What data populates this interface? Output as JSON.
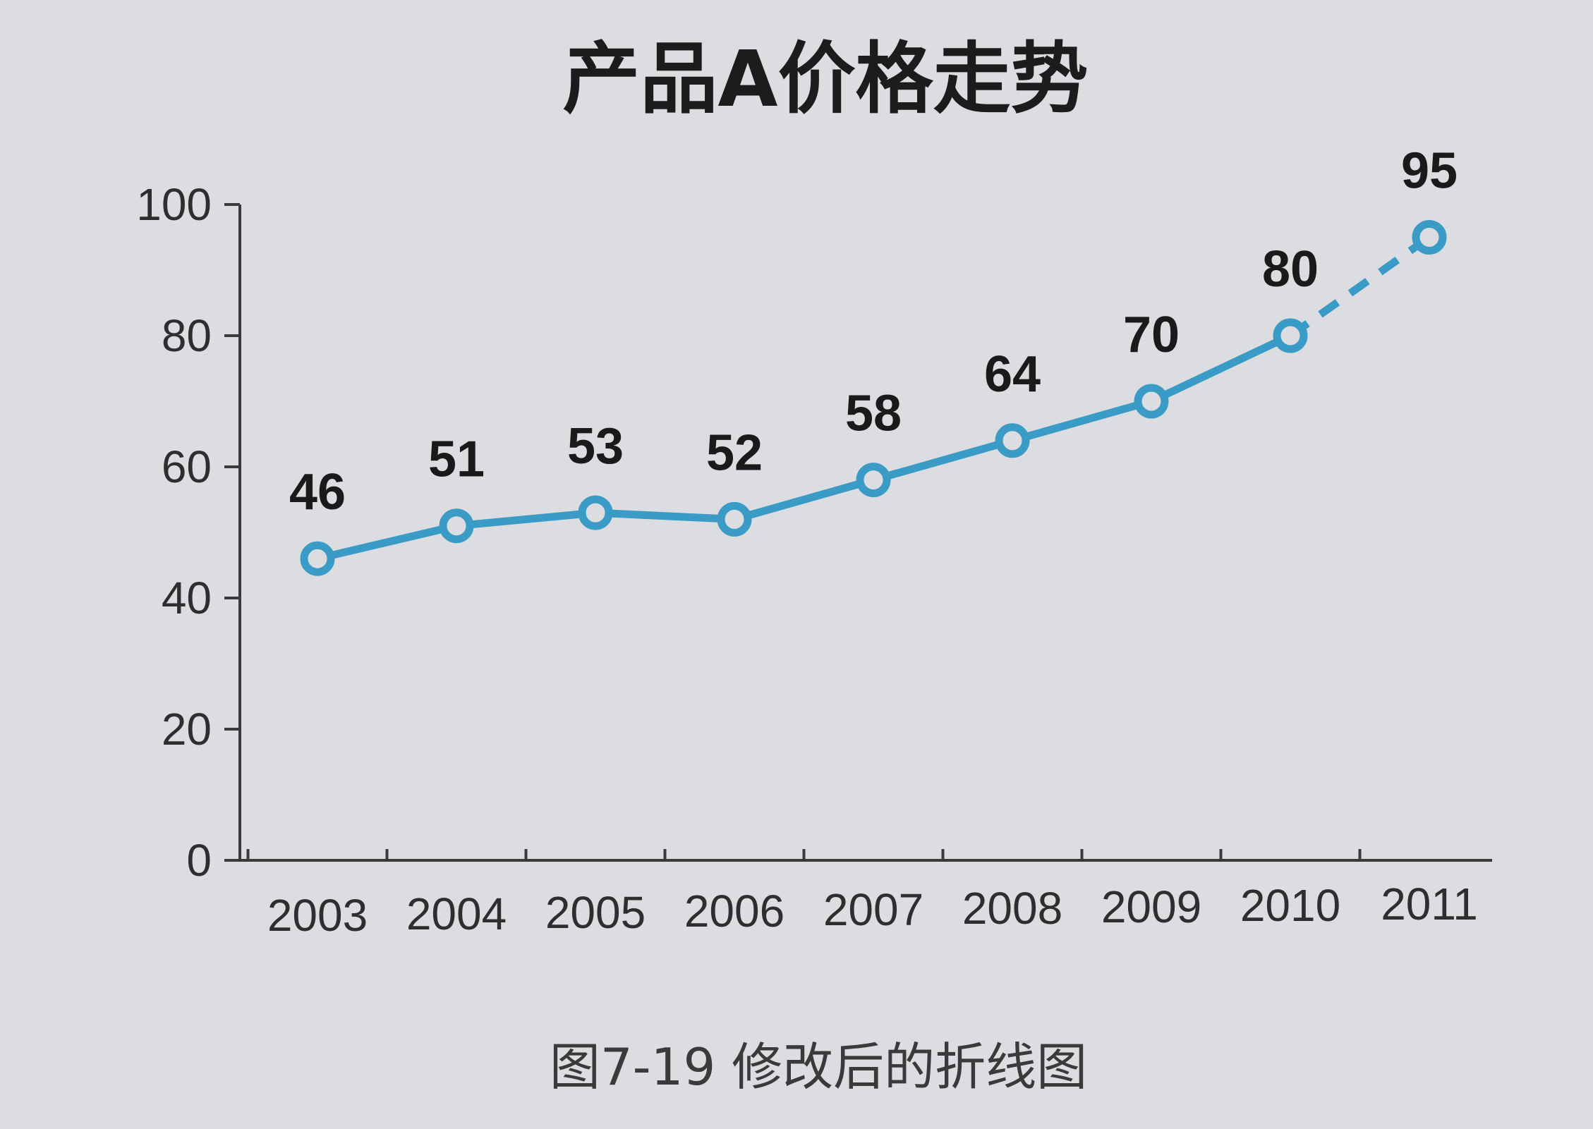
{
  "chart_data": {
    "type": "line",
    "title": "产品A价格走势",
    "caption": "图7-19  修改后的折线图",
    "categories": [
      "2003",
      "2004",
      "2005",
      "2006",
      "2007",
      "2008",
      "2009",
      "2010",
      "2011"
    ],
    "series": [
      {
        "values": [
          46,
          51,
          53,
          52,
          58,
          64,
          70,
          80,
          95
        ],
        "color": "#3a9cc6",
        "dashed_last_segment": true,
        "marker": "hollow-circle"
      }
    ],
    "data_labels": [
      "46",
      "51",
      "53",
      "52",
      "58",
      "64",
      "70",
      "80",
      "95"
    ],
    "y_ticks": [
      "0",
      "20",
      "40",
      "60",
      "80",
      "100"
    ],
    "xlabel": "",
    "ylabel": "",
    "ylim": [
      0,
      100
    ],
    "grid": false,
    "legend": "none"
  }
}
